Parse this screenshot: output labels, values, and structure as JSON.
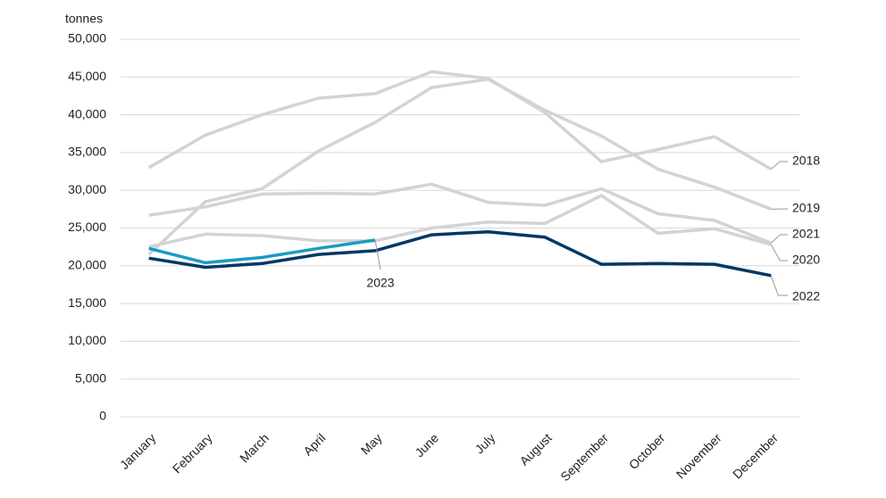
{
  "chart_data": {
    "type": "line",
    "y_label": "tonnes",
    "categories": [
      "January",
      "February",
      "March",
      "April",
      "May",
      "June",
      "July",
      "August",
      "September",
      "October",
      "November",
      "December"
    ],
    "series": [
      {
        "name": "2018",
        "color": "#d3d3d3",
        "values": [
          33000,
          37300,
          40000,
          42200,
          42800,
          45700,
          44800,
          40300,
          33800,
          35400,
          37100,
          32800
        ]
      },
      {
        "name": "2019",
        "color": "#d3d3d3",
        "values": [
          21500,
          28500,
          30200,
          35200,
          39000,
          43600,
          44700,
          40600,
          37200,
          32800,
          30400,
          27500
        ]
      },
      {
        "name": "2020",
        "color": "#d3d3d3",
        "values": [
          22500,
          24200,
          24000,
          23300,
          23300,
          25000,
          25800,
          25600,
          29300,
          24300,
          24900,
          22800
        ]
      },
      {
        "name": "2021",
        "color": "#d3d3d3",
        "values": [
          26700,
          27800,
          29500,
          29600,
          29500,
          30800,
          28400,
          28000,
          30200,
          26900,
          26000,
          23000
        ]
      },
      {
        "name": "2022",
        "color": "#003865",
        "values": [
          21000,
          19800,
          20300,
          21500,
          22000,
          24100,
          24500,
          23800,
          20200,
          20300,
          20200,
          18700
        ]
      },
      {
        "name": "2023",
        "color": "#1a9bc4",
        "values": [
          22300,
          20400,
          21100,
          22300,
          23400,
          null,
          null,
          null,
          null,
          null,
          null,
          null
        ]
      }
    ],
    "ylim": [
      0,
      50000
    ],
    "yticks": [
      0,
      {
        "value": 5000,
        "label": "5,000"
      },
      {
        "value": 10000,
        "label": "10,000"
      },
      {
        "value": 15000,
        "label": "15,000"
      },
      {
        "value": 20000,
        "label": "20,000"
      },
      {
        "value": 25000,
        "label": "25,000"
      },
      {
        "value": 30000,
        "label": "30,000"
      },
      {
        "value": 35000,
        "label": "35,000"
      },
      {
        "value": 40000,
        "label": "40,000"
      },
      {
        "value": 45000,
        "label": "45,000"
      },
      {
        "value": 50000,
        "label": "50,000"
      }
    ],
    "grid": true
  }
}
